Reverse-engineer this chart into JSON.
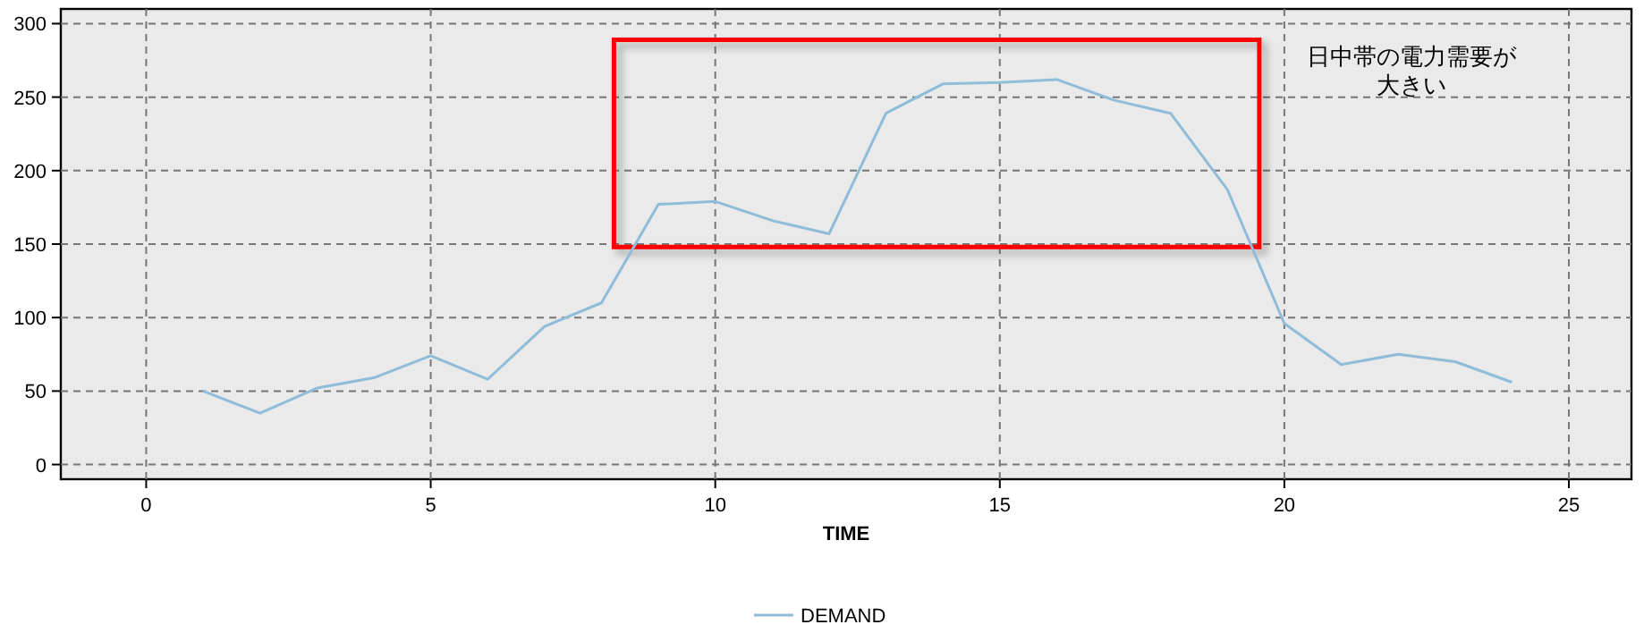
{
  "chart_data": {
    "type": "line",
    "xlabel": "TIME",
    "x": [
      1,
      2,
      3,
      4,
      5,
      6,
      7,
      8,
      9,
      10,
      11,
      12,
      13,
      14,
      15,
      16,
      17,
      18,
      19,
      20,
      21,
      22,
      23,
      24
    ],
    "series": [
      {
        "name": "DEMAND",
        "color": "#8fbcd8",
        "values": [
          50,
          35,
          52,
          59,
          74,
          58,
          94,
          110,
          177,
          179,
          166,
          157,
          239,
          259,
          260,
          262,
          248,
          239,
          187,
          96,
          68,
          75,
          70,
          56
        ]
      }
    ],
    "xlim": [
      -1.5,
      26.1
    ],
    "ylim": [
      -10,
      310
    ],
    "xticks": [
      0,
      5,
      10,
      15,
      20,
      25
    ],
    "yticks": [
      0,
      50,
      100,
      150,
      200,
      250,
      300
    ],
    "grid": true,
    "legend": "bottom",
    "marker": "none",
    "line_style": "solid",
    "annotations": [
      "日中帯の電力需要が大きい"
    ]
  }
}
